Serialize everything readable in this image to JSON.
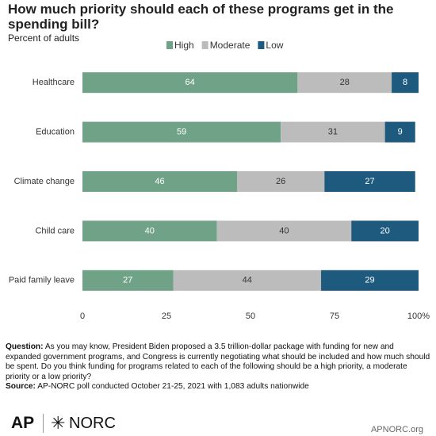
{
  "chart_data": {
    "type": "stacked_bar_horizontal",
    "title": "How much priority should each of these programs get in the spending bill?",
    "subtitle": "Percent of adults",
    "categories": [
      "Healthcare",
      "Education",
      "Climate change",
      "Child care",
      "Paid family leave"
    ],
    "series": [
      {
        "name": "High",
        "color": "#6fa287",
        "values": [
          64,
          59,
          46,
          40,
          27
        ]
      },
      {
        "name": "Moderate",
        "color": "#bcbcbc",
        "values": [
          28,
          31,
          26,
          40,
          44
        ]
      },
      {
        "name": "Low",
        "color": "#1d5a7e",
        "values": [
          8,
          9,
          27,
          20,
          29
        ]
      }
    ],
    "xlim": [
      0,
      100
    ],
    "xticks": [
      0,
      25,
      50,
      75,
      {
        "value": 100,
        "label": "100%"
      }
    ],
    "legend": "top"
  },
  "footer": {
    "question_label": "Question:",
    "question_text": "As you may know, President Biden proposed a 3.5 trillion-dollar package with funding for new and expanded government programs, and Congress is currently negotiating what should be included and how much should be spent. Do you think funding for programs related to each of the following should be a high priority, a moderate priority or a low priority?",
    "source_label": "Source:",
    "source_text": "AP-NORC poll conducted October 21-25, 2021 with 1,083 adults nationwide",
    "logo_ap": "AP",
    "logo_norc": "NORC",
    "site": "APNORC.org"
  }
}
